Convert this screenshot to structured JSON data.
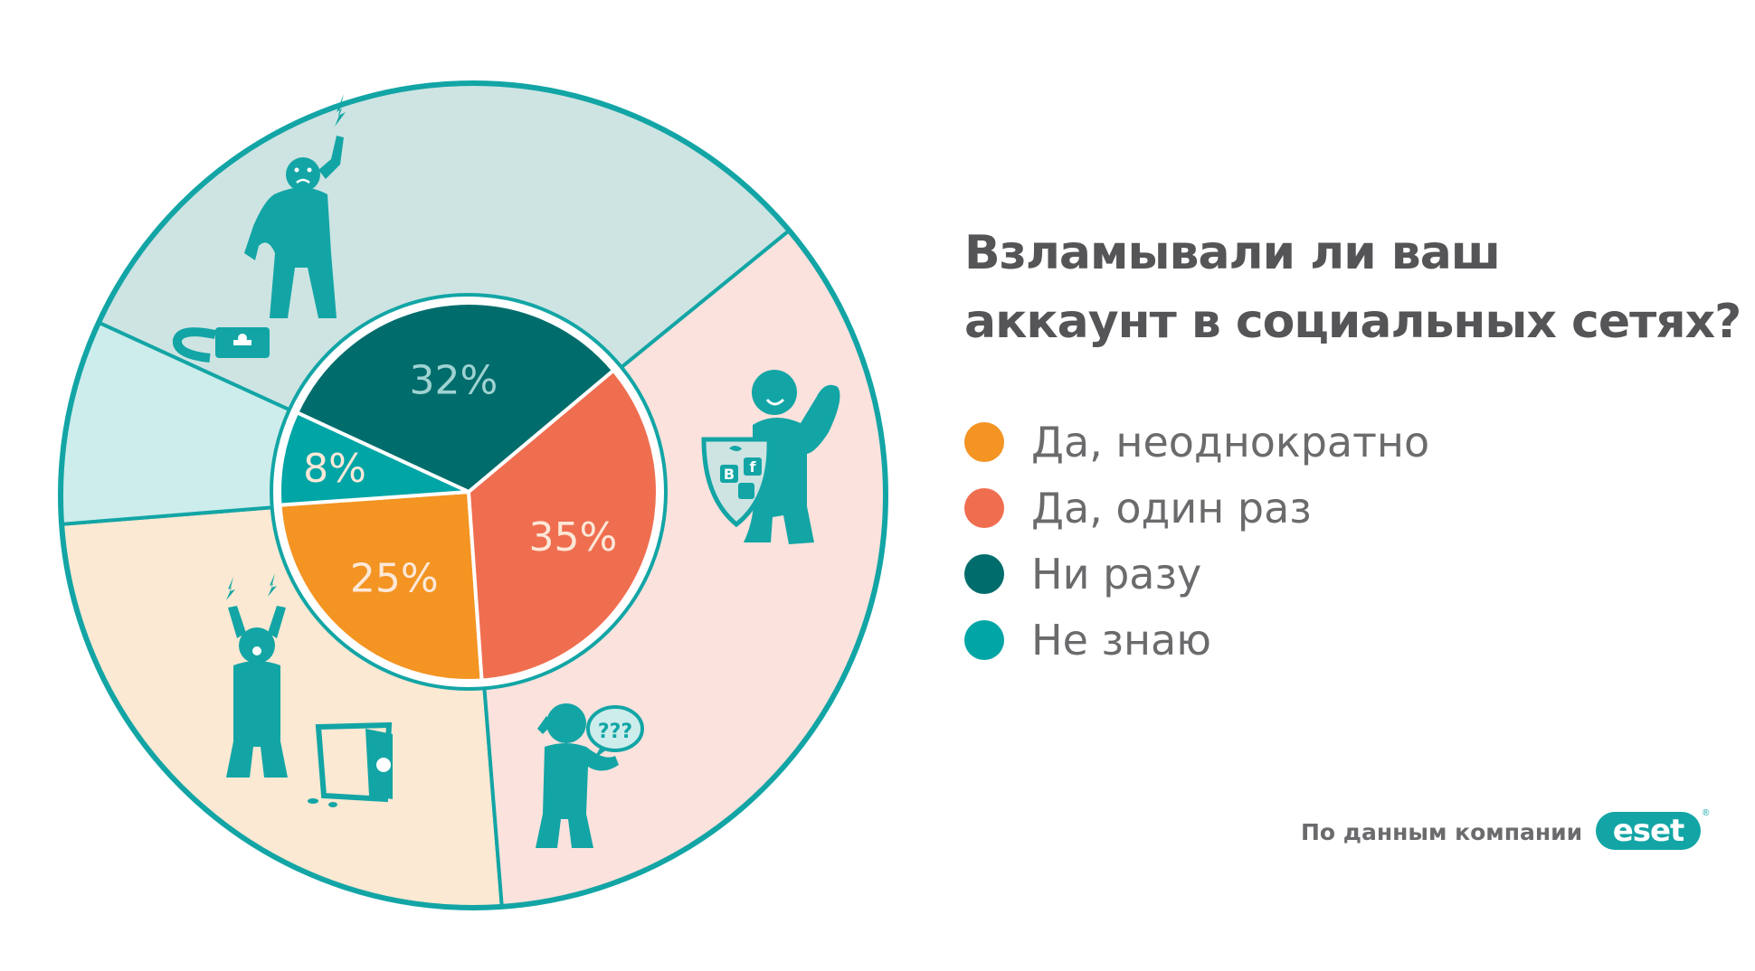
{
  "title": {
    "line1": "Взламывали ли ваш",
    "line2": "аккаунт в социальных сетях?"
  },
  "chart_data": {
    "type": "pie",
    "categories": [
      "Да, неоднократно",
      "Да, один раз",
      "Ни разу",
      "Не знаю"
    ],
    "values": [
      25,
      35,
      32,
      8
    ],
    "data_labels": [
      "25%",
      "35%",
      "32%",
      "8%"
    ],
    "colors": [
      "#f39423",
      "#ef6e50",
      "#006d6c",
      "#00a5a5"
    ],
    "outer_ring_colors": [
      "#fbe9d3",
      "#fbe2dd",
      "#cde4e3",
      "#cdedec"
    ],
    "border_color": "#13a5a5",
    "legend_position": "right"
  },
  "legend": [
    {
      "label": "Да, неоднократно",
      "color": "#f39423"
    },
    {
      "label": "Да, один раз",
      "color": "#ef6e50"
    },
    {
      "label": "Ни разу",
      "color": "#006d6c"
    },
    {
      "label": "Не знаю",
      "color": "#00a5a5"
    }
  ],
  "source": "По данным компании",
  "logo": {
    "text": "eset",
    "mark": "®"
  },
  "illustrations": [
    "angry-person-with-broken-lock-icon",
    "strong-person-with-social-shield-icon",
    "shocked-person-with-open-safe-icon",
    "confused-person-with-question-bubble-icon"
  ]
}
